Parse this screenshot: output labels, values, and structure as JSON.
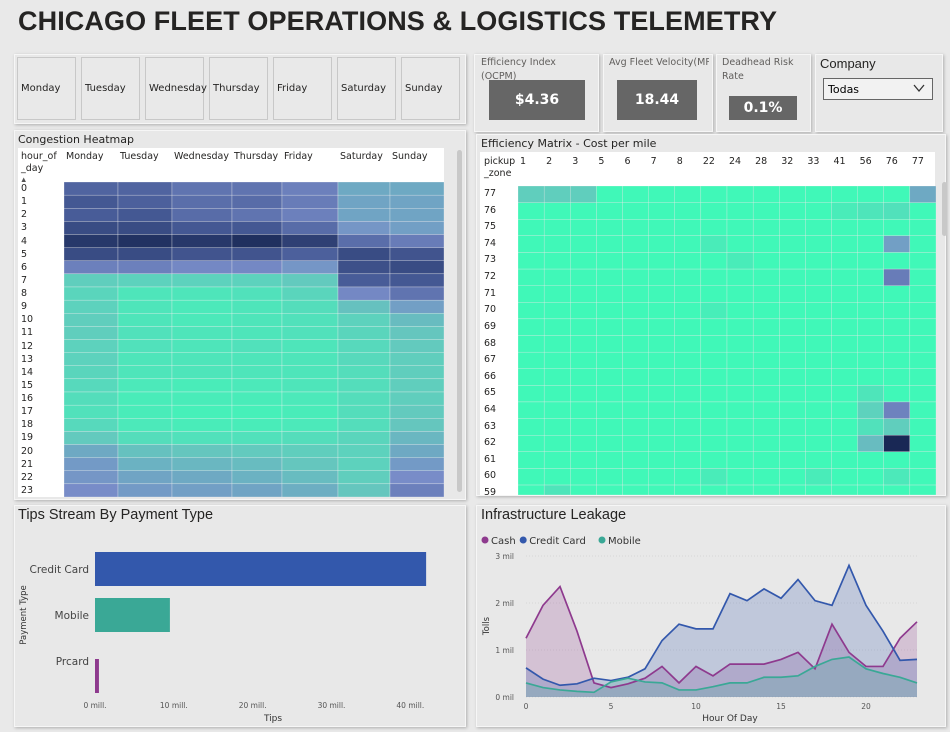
{
  "title": "CHICAGO FLEET OPERATIONS & LOGISTICS TELEMETRY",
  "days": [
    "Monday",
    "Tuesday",
    "Wednesday",
    "Thursday",
    "Friday",
    "Saturday",
    "Sunday"
  ],
  "kpis": [
    {
      "label": "Efficiency Index (OCPM)",
      "value": "$4.36"
    },
    {
      "label": "Avg Fleet Velocity(MP...",
      "value": "18.44"
    },
    {
      "label": "Deadhead Risk Rate",
      "value": "0.1%"
    }
  ],
  "company": {
    "label": "Company",
    "selected": "Todas",
    "icon": "chevron-down-icon"
  },
  "congestion": {
    "title": "Congestion Heatmap",
    "row_header": "hour_of_day",
    "sort_icon": "sort-up-icon",
    "columns": [
      "Monday",
      "Tuesday",
      "Wednesday",
      "Thursday",
      "Friday",
      "Saturday",
      "Sunday"
    ],
    "hours": [
      "0",
      "1",
      "2",
      "3",
      "4",
      "5",
      "6",
      "7",
      "8",
      "9",
      "10",
      "11",
      "12",
      "13",
      "14",
      "15",
      "16",
      "17",
      "18",
      "19",
      "20",
      "21",
      "22",
      "23"
    ],
    "values": [
      [
        0.7,
        0.7,
        0.62,
        0.62,
        0.56,
        0.38,
        0.38
      ],
      [
        0.76,
        0.72,
        0.65,
        0.66,
        0.58,
        0.4,
        0.4
      ],
      [
        0.74,
        0.76,
        0.66,
        0.62,
        0.56,
        0.4,
        0.4
      ],
      [
        0.82,
        0.82,
        0.76,
        0.76,
        0.66,
        0.46,
        0.42
      ],
      [
        0.92,
        0.95,
        0.92,
        0.96,
        0.88,
        0.65,
        0.58
      ],
      [
        0.82,
        0.82,
        0.78,
        0.78,
        0.72,
        0.82,
        0.78
      ],
      [
        0.56,
        0.56,
        0.52,
        0.52,
        0.46,
        0.8,
        0.82
      ],
      [
        0.22,
        0.2,
        0.2,
        0.2,
        0.24,
        0.74,
        0.76
      ],
      [
        0.18,
        0.1,
        0.1,
        0.12,
        0.18,
        0.52,
        0.62
      ],
      [
        0.2,
        0.1,
        0.08,
        0.1,
        0.14,
        0.28,
        0.42
      ],
      [
        0.22,
        0.1,
        0.08,
        0.1,
        0.12,
        0.2,
        0.3
      ],
      [
        0.22,
        0.12,
        0.1,
        0.1,
        0.12,
        0.18,
        0.26
      ],
      [
        0.2,
        0.12,
        0.1,
        0.12,
        0.1,
        0.16,
        0.24
      ],
      [
        0.2,
        0.1,
        0.1,
        0.1,
        0.1,
        0.16,
        0.22
      ],
      [
        0.18,
        0.1,
        0.1,
        0.1,
        0.1,
        0.14,
        0.22
      ],
      [
        0.16,
        0.08,
        0.06,
        0.08,
        0.1,
        0.14,
        0.22
      ],
      [
        0.14,
        0.06,
        0.06,
        0.06,
        0.08,
        0.14,
        0.22
      ],
      [
        0.12,
        0.06,
        0.04,
        0.04,
        0.06,
        0.14,
        0.24
      ],
      [
        0.16,
        0.08,
        0.06,
        0.06,
        0.08,
        0.14,
        0.26
      ],
      [
        0.24,
        0.14,
        0.12,
        0.12,
        0.14,
        0.18,
        0.32
      ],
      [
        0.38,
        0.28,
        0.26,
        0.24,
        0.22,
        0.2,
        0.38
      ],
      [
        0.44,
        0.34,
        0.32,
        0.3,
        0.26,
        0.2,
        0.44
      ],
      [
        0.46,
        0.4,
        0.38,
        0.34,
        0.3,
        0.22,
        0.5
      ],
      [
        0.5,
        0.44,
        0.42,
        0.4,
        0.36,
        0.26,
        0.56
      ]
    ]
  },
  "efficiency": {
    "title": "Efficiency Matrix - Cost per mile",
    "row_header": "pickup_zone",
    "columns": [
      "1",
      "2",
      "3",
      "5",
      "6",
      "7",
      "8",
      "22",
      "24",
      "28",
      "32",
      "33",
      "41",
      "56",
      "76",
      "77"
    ],
    "rows": [
      "77",
      "76",
      "75",
      "74",
      "73",
      "72",
      "71",
      "70",
      "69",
      "68",
      "67",
      "66",
      "65",
      "64",
      "63",
      "62",
      "61",
      "60",
      "59"
    ],
    "highlights": [
      {
        "row": "77",
        "col": "1",
        "v": 0.22
      },
      {
        "row": "77",
        "col": "2",
        "v": 0.22
      },
      {
        "row": "77",
        "col": "3",
        "v": 0.22
      },
      {
        "row": "77",
        "col": "77",
        "v": 0.38
      },
      {
        "row": "76",
        "col": "41",
        "v": 0.06
      },
      {
        "row": "76",
        "col": "56",
        "v": 0.1
      },
      {
        "row": "76",
        "col": "76",
        "v": 0.12
      },
      {
        "row": "74",
        "col": "22",
        "v": 0.06
      },
      {
        "row": "74",
        "col": "76",
        "v": 0.42
      },
      {
        "row": "73",
        "col": "24",
        "v": 0.06
      },
      {
        "row": "72",
        "col": "76",
        "v": 0.58
      },
      {
        "row": "70",
        "col": "22",
        "v": 0.05
      },
      {
        "row": "65",
        "col": "56",
        "v": 0.1
      },
      {
        "row": "64",
        "col": "56",
        "v": 0.2
      },
      {
        "row": "64",
        "col": "76",
        "v": 0.55
      },
      {
        "row": "63",
        "col": "56",
        "v": 0.12
      },
      {
        "row": "63",
        "col": "76",
        "v": 0.22
      },
      {
        "row": "62",
        "col": "56",
        "v": 0.3
      },
      {
        "row": "62",
        "col": "76",
        "v": 1.0
      },
      {
        "row": "60",
        "col": "22",
        "v": 0.06
      },
      {
        "row": "60",
        "col": "33",
        "v": 0.06
      },
      {
        "row": "60",
        "col": "76",
        "v": 0.08
      },
      {
        "row": "59",
        "col": "2",
        "v": 0.1
      }
    ]
  },
  "tips": {
    "title": "Tips Stream By Payment Type",
    "chart_data": {
      "type": "bar",
      "orientation": "horizontal",
      "categories": [
        "Credit Card",
        "Mobile",
        "Prcard"
      ],
      "values": [
        42,
        9.5,
        0.5
      ],
      "colors": [
        "#3358ac",
        "#3aa896",
        "#8e3a8e"
      ],
      "xlabel": "Tips",
      "ylabel": "Payment Type",
      "xticks": [
        "0 mill.",
        "10 mill.",
        "20 mill.",
        "30 mill.",
        "40 mill."
      ],
      "xlim": [
        0,
        43
      ]
    }
  },
  "leakage": {
    "title": "Infrastructure Leakage",
    "chart_data": {
      "type": "area",
      "x": [
        0,
        1,
        2,
        3,
        4,
        5,
        6,
        7,
        8,
        9,
        10,
        11,
        12,
        13,
        14,
        15,
        16,
        17,
        18,
        19,
        20,
        21,
        22,
        23
      ],
      "series": [
        {
          "name": "Cash",
          "color": "#8e3a8e",
          "values": [
            1.25,
            1.95,
            2.35,
            1.4,
            0.3,
            0.2,
            0.28,
            0.4,
            0.65,
            0.3,
            0.65,
            0.45,
            0.7,
            0.7,
            0.7,
            0.8,
            0.95,
            0.6,
            1.55,
            0.95,
            0.65,
            0.65,
            1.25,
            1.6
          ]
        },
        {
          "name": "Credit Card",
          "color": "#3358ac",
          "values": [
            0.62,
            0.38,
            0.25,
            0.28,
            0.4,
            0.35,
            0.42,
            0.6,
            1.2,
            1.55,
            1.45,
            1.45,
            2.2,
            2.05,
            2.3,
            2.1,
            2.5,
            2.05,
            1.95,
            2.8,
            1.95,
            1.4,
            0.78,
            0.8
          ]
        },
        {
          "name": "Mobile",
          "color": "#3aa896",
          "values": [
            0.3,
            0.2,
            0.15,
            0.12,
            0.1,
            0.32,
            0.4,
            0.32,
            0.3,
            0.15,
            0.15,
            0.22,
            0.3,
            0.3,
            0.42,
            0.42,
            0.45,
            0.65,
            0.8,
            0.85,
            0.6,
            0.5,
            0.42,
            0.3
          ]
        }
      ],
      "xlabel": "Hour Of Day",
      "ylabel": "Tolls",
      "yticks": [
        "0 mil",
        "1 mil",
        "2 mil",
        "3 mil"
      ],
      "xticks": [
        "0",
        "5",
        "10",
        "15",
        "20"
      ],
      "ylim": [
        0,
        3
      ],
      "xlim": [
        0,
        23
      ],
      "legend": "top-left"
    }
  }
}
